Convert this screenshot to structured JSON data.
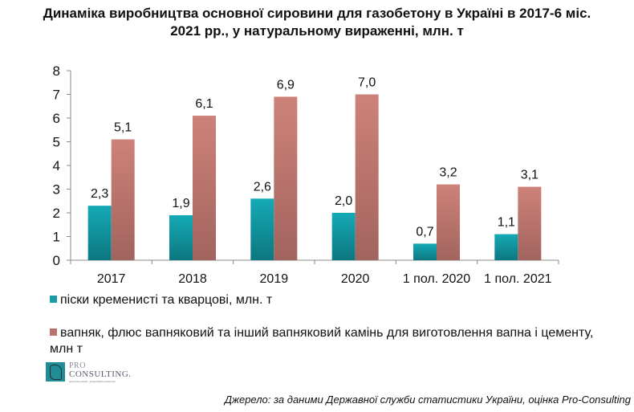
{
  "title_lines": [
    "Динаміка виробництва основної сировини для газобетону в Україні в 2017-6 міс.",
    "2021 рр., у натуральному вираженні, млн. т"
  ],
  "chart_data": {
    "type": "bar",
    "title": "Динаміка виробництва основної сировини для газобетону в Україні в 2017-6 міс. 2021 рр., у натуральному вираженні, млн. т",
    "categories": [
      "2017",
      "2018",
      "2019",
      "2020",
      "1 пол. 2020",
      "1 пол. 2021"
    ],
    "series": [
      {
        "name": "піски кременисті та кварцові, млн. т",
        "color": "#1a9ca6",
        "values": [
          2.3,
          1.9,
          2.6,
          2.0,
          0.7,
          1.1
        ],
        "labels": [
          "2,3",
          "1,9",
          "2,6",
          "2,0",
          "0,7",
          "1,1"
        ]
      },
      {
        "name": "вапняк, флюс вапняковий та інший вапняковий камінь для виготовлення вапна і цементу, млн т",
        "color": "#b9736c",
        "values": [
          5.1,
          6.1,
          6.9,
          7.0,
          3.2,
          3.1
        ],
        "labels": [
          "5,1",
          "6,1",
          "6,9",
          "7,0",
          "3,2",
          "3,1"
        ]
      }
    ],
    "xlabel": "",
    "ylabel": "",
    "ylim": [
      0,
      8
    ],
    "yticks": [
      "0",
      "1",
      "2",
      "3",
      "4",
      "5",
      "6",
      "7",
      "8"
    ],
    "grid": false,
    "legend_position": "bottom"
  },
  "legend": {
    "item1": "піски кременисті та кварцові, млн. т",
    "item2": "вапняк, флюс вапняковий та інший вапняковий камінь для виготовлення вапна і цементу, млн т"
  },
  "logo": {
    "line1": "PRO",
    "line2": "CONSULTING.",
    "tagline": "аналітика ринків · фінансовий консалтинг"
  },
  "source": "Джерело: за даними Державної служби статистики України, оцінка Pro-Consulting"
}
